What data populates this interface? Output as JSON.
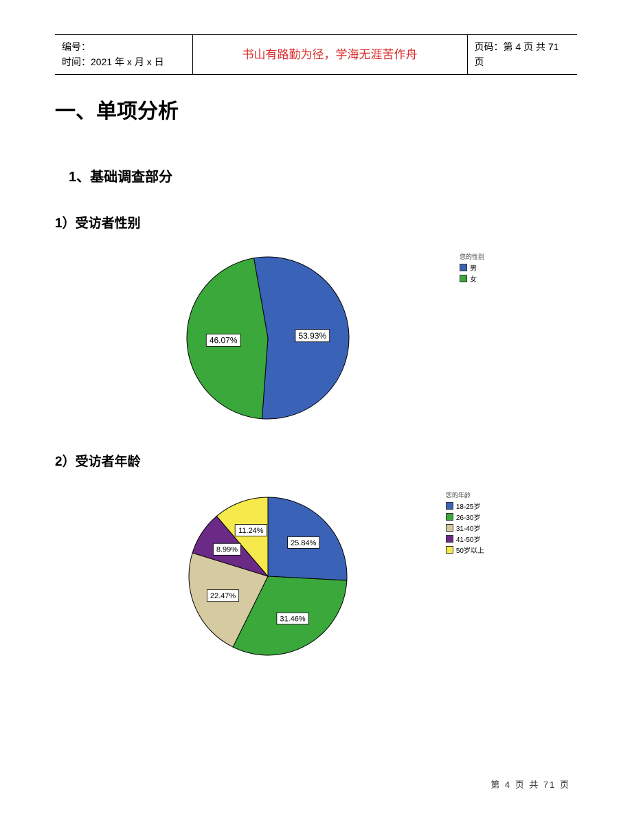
{
  "header": {
    "id_label": "编号：",
    "time_label": "时间：",
    "time_value": "2021 年 x 月 x 日",
    "motto": "书山有路勤为径，学海无涯苦作舟",
    "motto_color": "#d92b2b",
    "page_label": "页码：第 4 页 共 71 页"
  },
  "headings": {
    "h1": "一、单项分析",
    "h2": "1、基础调查部分",
    "h3a": "1）受访者性别",
    "h3b": "2）受访者年龄"
  },
  "chart1": {
    "type": "pie",
    "legend_title": "您的性别",
    "radius": 118,
    "slices": [
      {
        "label": "男",
        "value": 53.93,
        "pct_text": "53.93%",
        "color": "#3a62b7",
        "stroke": "#000000"
      },
      {
        "label": "女",
        "value": 46.07,
        "pct_text": "46.07%",
        "color": "#3aa83a",
        "stroke": "#000000"
      }
    ],
    "label_box_bg": "#ffffff",
    "label_box_border": "#000000",
    "label_fontsize": 12
  },
  "chart2": {
    "type": "pie",
    "legend_title": "您的年龄",
    "radius": 115,
    "slices": [
      {
        "label": "18-25岁",
        "value": 25.84,
        "pct_text": "25.84%",
        "color": "#3a62b7",
        "stroke": "#000000"
      },
      {
        "label": "26-30岁",
        "value": 31.46,
        "pct_text": "31.46%",
        "color": "#3aa83a",
        "stroke": "#000000"
      },
      {
        "label": "31-40岁",
        "value": 22.47,
        "pct_text": "22.47%",
        "color": "#d6cba0",
        "stroke": "#000000"
      },
      {
        "label": "41-50岁",
        "value": 8.99,
        "pct_text": "8.99%",
        "color": "#6b2a85",
        "stroke": "#000000"
      },
      {
        "label": "50岁以上",
        "value": 11.24,
        "pct_text": "11.24%",
        "color": "#f5e94b",
        "stroke": "#000000"
      }
    ],
    "label_box_bg": "#ffffff",
    "label_box_border": "#000000",
    "label_fontsize": 11
  },
  "footer": {
    "text": "第 4 页 共 71 页"
  }
}
